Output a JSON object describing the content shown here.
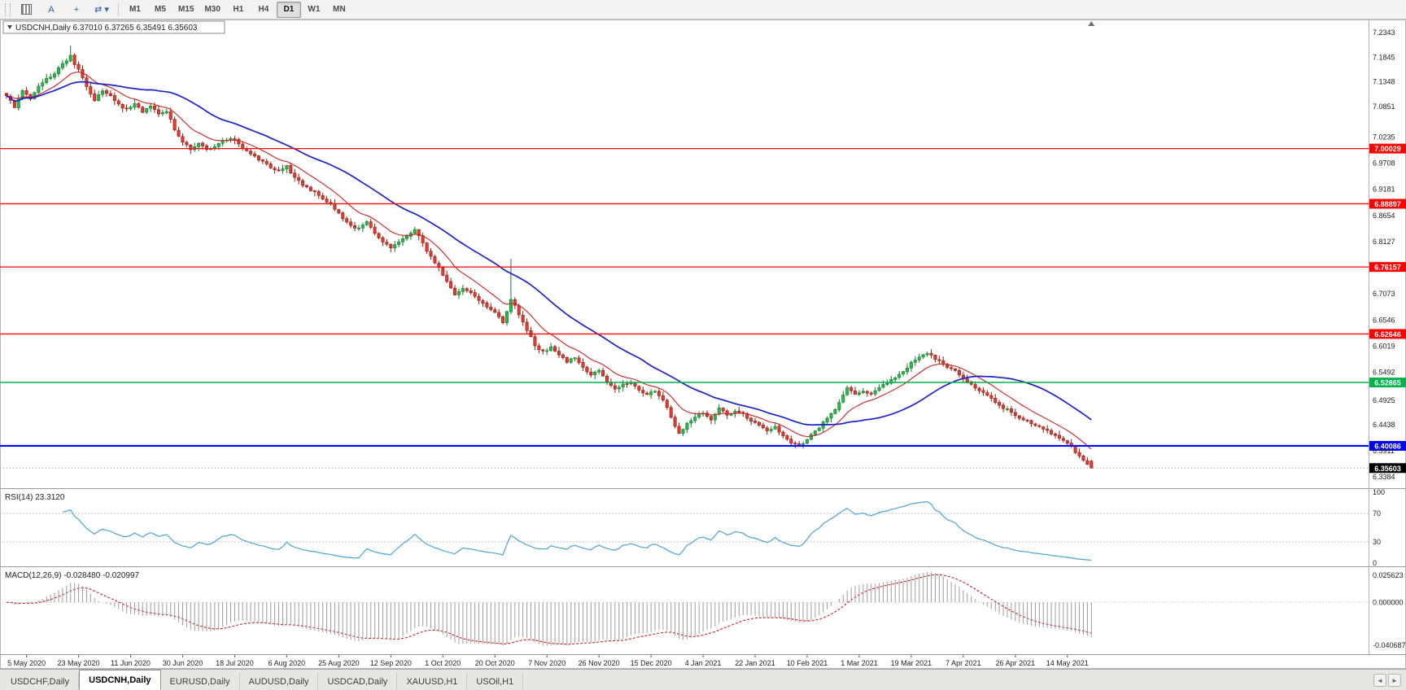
{
  "toolbar": {
    "icons": [
      {
        "name": "new-chart-icon",
        "glyph": "",
        "css": "chart"
      },
      {
        "name": "cursor-tool-icon",
        "glyph": "A"
      },
      {
        "name": "crosshair-tool-icon",
        "glyph": "+"
      },
      {
        "name": "cycle-timeframes-icon",
        "glyph": "⇄ ▾"
      }
    ],
    "timeframes": [
      "M1",
      "M5",
      "M15",
      "M30",
      "H1",
      "H4",
      "D1",
      "W1",
      "MN"
    ],
    "active_timeframe": "D1"
  },
  "chart_data": [
    {
      "type": "candlestick",
      "title": "USDCNH,Daily",
      "ohlc_line": "6.37010 6.37265 6.35491 6.35603",
      "open": "6.37010",
      "high": "6.37265",
      "low": "6.35491",
      "close": "6.35603",
      "y_range": [
        6.3384,
        7.2343
      ],
      "y_axis_labels": [
        "7.2343",
        "7.1845",
        "7.1348",
        "7.0851",
        "7.0235",
        "6.9708",
        "6.9181",
        "6.8654",
        "6.8127",
        "6.7073",
        "6.6546",
        "6.6019",
        "6.5492",
        "6.4925",
        "6.4438",
        "6.3911",
        "6.3384"
      ],
      "x_axis_labels": [
        "5 May 2020",
        "23 May 2020",
        "11 Jun 2020",
        "30 Jun 2020",
        "18 Jul 2020",
        "6 Aug 2020",
        "25 Aug 2020",
        "12 Sep 2020",
        "1 Oct 2020",
        "20 Oct 2020",
        "7 Nov 2020",
        "26 Nov 2020",
        "15 Dec 2020",
        "4 Jan 2021",
        "22 Jan 2021",
        "10 Feb 2021",
        "1 Mar 2021",
        "19 Mar 2021",
        "7 Apr 2021",
        "26 Apr 2021",
        "14 May 2021"
      ],
      "n_bars": 272,
      "first_label_bar": 5,
      "label_step": 13,
      "anchors": [
        [
          0,
          7.108
        ],
        [
          2,
          7.085
        ],
        [
          4,
          7.118
        ],
        [
          6,
          7.098
        ],
        [
          8,
          7.124
        ],
        [
          10,
          7.14
        ],
        [
          12,
          7.152
        ],
        [
          14,
          7.172
        ],
        [
          16,
          7.186
        ],
        [
          18,
          7.158
        ],
        [
          20,
          7.125
        ],
        [
          22,
          7.098
        ],
        [
          24,
          7.118
        ],
        [
          26,
          7.108
        ],
        [
          28,
          7.09
        ],
        [
          30,
          7.078
        ],
        [
          32,
          7.092
        ],
        [
          34,
          7.075
        ],
        [
          36,
          7.086
        ],
        [
          38,
          7.072
        ],
        [
          40,
          7.076
        ],
        [
          42,
          7.04
        ],
        [
          44,
          7.012
        ],
        [
          46,
          7.0
        ],
        [
          48,
          7.01
        ],
        [
          50,
          6.997
        ],
        [
          52,
          7.004
        ],
        [
          54,
          7.017
        ],
        [
          56,
          7.022
        ],
        [
          58,
          7.01
        ],
        [
          60,
          6.994
        ],
        [
          62,
          6.985
        ],
        [
          64,
          6.974
        ],
        [
          66,
          6.96
        ],
        [
          68,
          6.954
        ],
        [
          70,
          6.967
        ],
        [
          72,
          6.94
        ],
        [
          74,
          6.928
        ],
        [
          76,
          6.917
        ],
        [
          78,
          6.905
        ],
        [
          80,
          6.894
        ],
        [
          82,
          6.88
        ],
        [
          84,
          6.861
        ],
        [
          86,
          6.845
        ],
        [
          88,
          6.838
        ],
        [
          90,
          6.851
        ],
        [
          92,
          6.828
        ],
        [
          94,
          6.814
        ],
        [
          96,
          6.8
        ],
        [
          98,
          6.812
        ],
        [
          100,
          6.824
        ],
        [
          102,
          6.837
        ],
        [
          104,
          6.809
        ],
        [
          106,
          6.781
        ],
        [
          108,
          6.759
        ],
        [
          110,
          6.731
        ],
        [
          112,
          6.704
        ],
        [
          114,
          6.717
        ],
        [
          116,
          6.711
        ],
        [
          118,
          6.694
        ],
        [
          120,
          6.682
        ],
        [
          122,
          6.669
        ],
        [
          124,
          6.651
        ],
        [
          126,
          6.697
        ],
        [
          128,
          6.667
        ],
        [
          130,
          6.634
        ],
        [
          132,
          6.604
        ],
        [
          134,
          6.59
        ],
        [
          136,
          6.6
        ],
        [
          138,
          6.584
        ],
        [
          140,
          6.571
        ],
        [
          142,
          6.579
        ],
        [
          144,
          6.559
        ],
        [
          146,
          6.544
        ],
        [
          148,
          6.551
        ],
        [
          150,
          6.529
        ],
        [
          152,
          6.514
        ],
        [
          154,
          6.524
        ],
        [
          156,
          6.529
        ],
        [
          158,
          6.514
        ],
        [
          160,
          6.504
        ],
        [
          162,
          6.511
        ],
        [
          164,
          6.494
        ],
        [
          166,
          6.459
        ],
        [
          168,
          6.424
        ],
        [
          170,
          6.447
        ],
        [
          172,
          6.461
        ],
        [
          174,
          6.469
        ],
        [
          176,
          6.454
        ],
        [
          178,
          6.477
        ],
        [
          180,
          6.461
        ],
        [
          182,
          6.469
        ],
        [
          184,
          6.465
        ],
        [
          186,
          6.451
        ],
        [
          188,
          6.444
        ],
        [
          190,
          6.431
        ],
        [
          192,
          6.439
        ],
        [
          194,
          6.419
        ],
        [
          196,
          6.407
        ],
        [
          198,
          6.401
        ],
        [
          200,
          6.414
        ],
        [
          202,
          6.431
        ],
        [
          204,
          6.447
        ],
        [
          206,
          6.464
        ],
        [
          208,
          6.487
        ],
        [
          210,
          6.519
        ],
        [
          212,
          6.504
        ],
        [
          214,
          6.511
        ],
        [
          216,
          6.507
        ],
        [
          218,
          6.517
        ],
        [
          220,
          6.529
        ],
        [
          222,
          6.537
        ],
        [
          224,
          6.551
        ],
        [
          226,
          6.567
        ],
        [
          228,
          6.581
        ],
        [
          230,
          6.589
        ],
        [
          232,
          6.577
        ],
        [
          234,
          6.564
        ],
        [
          236,
          6.557
        ],
        [
          238,
          6.544
        ],
        [
          240,
          6.531
        ],
        [
          242,
          6.519
        ],
        [
          244,
          6.507
        ],
        [
          246,
          6.497
        ],
        [
          248,
          6.481
        ],
        [
          250,
          6.474
        ],
        [
          252,
          6.461
        ],
        [
          254,
          6.454
        ],
        [
          256,
          6.447
        ],
        [
          258,
          6.439
        ],
        [
          260,
          6.431
        ],
        [
          262,
          6.423
        ],
        [
          264,
          6.411
        ],
        [
          266,
          6.397
        ],
        [
          268,
          6.379
        ],
        [
          270,
          6.364
        ],
        [
          271,
          6.356
        ]
      ],
      "wick_spikes": [
        {
          "bar": 16,
          "high": 7.208
        },
        {
          "bar": 126,
          "high": 6.778
        }
      ],
      "horizontal_lines": [
        {
          "price": 7.00029,
          "label": "7.00029",
          "color": "#ff0000",
          "lw": 1.3
        },
        {
          "price": 6.88897,
          "label": "6.88897",
          "color": "#ff0000",
          "lw": 1.3
        },
        {
          "price": 6.76157,
          "label": "6.76157",
          "color": "#ff0000",
          "lw": 1.3
        },
        {
          "price": 6.62646,
          "label": "6.62646",
          "color": "#ff0000",
          "lw": 1.3
        },
        {
          "price": 6.52865,
          "label": "6.52865",
          "color": "#00b44a",
          "lw": 1.5
        },
        {
          "price": 6.40086,
          "label": "6.40086",
          "color": "#0000ff",
          "lw": 2.2
        }
      ],
      "current_price": {
        "value": 6.35603,
        "label": "6.35603",
        "color": "#000000"
      },
      "moving_averages": [
        {
          "name": "fast-ma",
          "method": "ema",
          "period": 12,
          "color": "#cc2222",
          "lw": 1.1
        },
        {
          "name": "slow-ma",
          "method": "sma",
          "period": 34,
          "color": "#1a22cc",
          "lw": 1.7
        }
      ],
      "bull_color": "#2db84d",
      "bull_edge": "#157a2e",
      "bear_color": "#e23b30",
      "bear_edge": "#8f1d14"
    },
    {
      "type": "line",
      "indicator": "RSI",
      "label": "RSI(14)",
      "value_text": "23.3120",
      "period": 14,
      "levels": [
        {
          "value": 100,
          "label": "100"
        },
        {
          "value": 70,
          "label": "70"
        },
        {
          "value": 30,
          "label": "30"
        },
        {
          "value": 0,
          "label": "0"
        }
      ],
      "line_color": "#49a4d5"
    },
    {
      "type": "bar",
      "indicator": "MACD",
      "label": "MACD(12,26,9)",
      "value_text": "-0.028480 -0.020997",
      "params": [
        12,
        26,
        9
      ],
      "main_value": "-0.028480",
      "signal_value": "-0.020997",
      "axis_labels": [
        {
          "value": 0.025623,
          "label": "0.025623"
        },
        {
          "value": 0,
          "label": "0.000000"
        },
        {
          "value": -0.040687,
          "label": "-0.040687"
        }
      ],
      "histogram_color": "#9c9c9c",
      "signal_color": "#cc2222"
    }
  ],
  "tabs": {
    "items": [
      "USDCHF,Daily",
      "USDCNH,Daily",
      "EURUSD,Daily",
      "AUDUSD,Daily",
      "USDCAD,Daily",
      "XAUUSD,H1",
      "USOil,H1"
    ],
    "active_index": 1,
    "scroll_left_glyph": "◄",
    "scroll_right_glyph": "►"
  }
}
